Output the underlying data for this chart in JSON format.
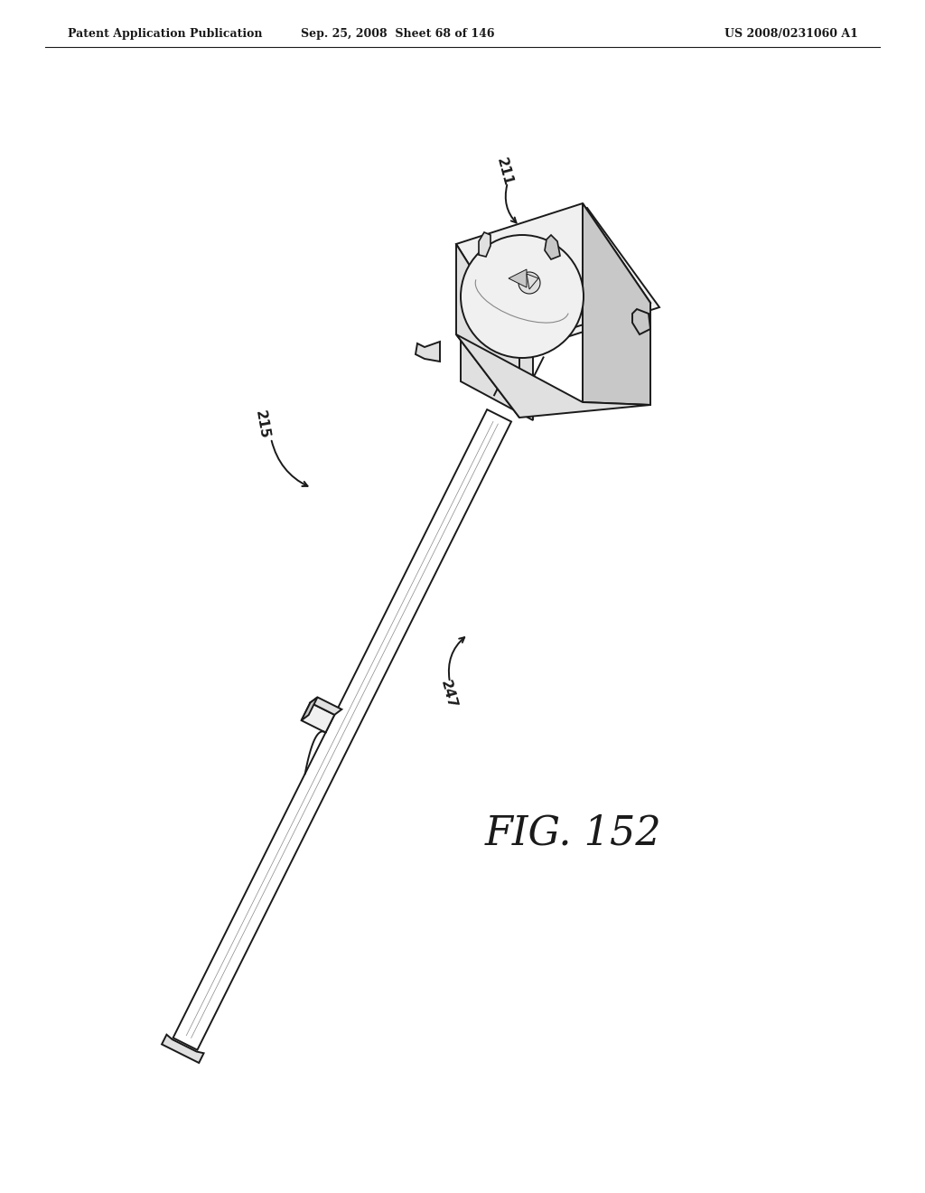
{
  "background_color": "#ffffff",
  "header_left": "Patent Application Publication",
  "header_middle": "Sep. 25, 2008  Sheet 68 of 146",
  "header_right": "US 2008/0231060 A1",
  "fig_label": "FIG. 152",
  "label_211": "211",
  "label_215": "215",
  "label_247": "247",
  "line_color": "#1a1a1a",
  "line_width": 1.4,
  "fill_light": "#f0f0f0",
  "fill_mid": "#e0e0e0",
  "fill_dark": "#c8c8c8",
  "fill_white": "#ffffff"
}
